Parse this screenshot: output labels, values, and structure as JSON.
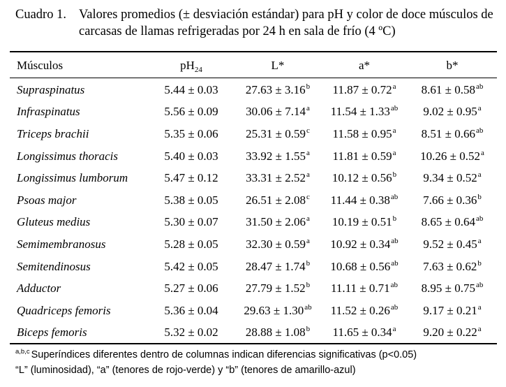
{
  "caption": {
    "label": "Cuadro 1.",
    "line1": "Valores promedios (± desviación estándar) para pH y color de doce músculos de",
    "line2": "carcasas de llamas refrigeradas por 24 h en sala de frío (4 ºC)"
  },
  "table": {
    "headers": {
      "muscle": "Músculos",
      "ph": "pH",
      "ph_sub": "24",
      "l": "L*",
      "a": "a*",
      "b": "b*"
    },
    "rows": [
      {
        "muscle": "Supraspinatus",
        "ph": "5.44 ± 0.03",
        "l": "27.63 ± 3.16",
        "l_sup": "b",
        "a": "11.87 ± 0.72",
        "a_sup": "a",
        "b": "8.61 ± 0.58",
        "b_sup": "ab"
      },
      {
        "muscle": "Infraspinatus",
        "ph": "5.56 ± 0.09",
        "l": "30.06 ± 7.14",
        "l_sup": "a",
        "a": "11.54 ± 1.33",
        "a_sup": "ab",
        "b": "9.02 ± 0.95",
        "b_sup": "a"
      },
      {
        "muscle": "Triceps brachii",
        "ph": "5.35 ± 0.06",
        "l": "25.31 ± 0.59",
        "l_sup": "c",
        "a": "11.58 ± 0.95",
        "a_sup": "a",
        "b": "8.51 ± 0.66",
        "b_sup": "ab"
      },
      {
        "muscle": "Longissimus thoracis",
        "ph": "5.40 ± 0.03",
        "l": "33.92 ± 1.55",
        "l_sup": "a",
        "a": "11.81 ± 0.59",
        "a_sup": "a",
        "b": "10.26 ± 0.52",
        "b_sup": "a"
      },
      {
        "muscle": "Longissimus lumborum",
        "ph": "5.47 ± 0.12",
        "l": "33.31 ± 2.52",
        "l_sup": "a",
        "a": "10.12 ± 0.56",
        "a_sup": "b",
        "b": "9.34 ± 0.52",
        "b_sup": "a"
      },
      {
        "muscle": "Psoas major",
        "ph": "5.38 ± 0.05",
        "l": "26.51 ± 2.08",
        "l_sup": "c",
        "a": "11.44 ± 0.38",
        "a_sup": "ab",
        "b": "7.66 ± 0.36",
        "b_sup": "b"
      },
      {
        "muscle": "Gluteus medius",
        "ph": "5.30 ± 0.07",
        "l": "31.50 ± 2.06",
        "l_sup": "a",
        "a": "10.19 ± 0.51",
        "a_sup": "b",
        "b": "8.65 ± 0.64",
        "b_sup": "ab"
      },
      {
        "muscle": "Semimembranosus",
        "ph": "5.28 ± 0.05",
        "l": "32.30 ± 0.59",
        "l_sup": "a",
        "a": "10.92 ± 0.34",
        "a_sup": "ab",
        "b": "9.52 ± 0.45",
        "b_sup": "a"
      },
      {
        "muscle": "Semitendinosus",
        "ph": "5.42 ± 0.05",
        "l": "28.47 ± 1.74",
        "l_sup": "b",
        "a": "10.68 ± 0.56",
        "a_sup": "ab",
        "b": "7.63 ± 0.62",
        "b_sup": "b"
      },
      {
        "muscle": "Adductor",
        "ph": "5.27 ± 0.06",
        "l": "27.79 ± 1.52",
        "l_sup": "b",
        "a": "11.11 ± 0.71",
        "a_sup": "ab",
        "b": "8.95 ± 0.75",
        "b_sup": "ab"
      },
      {
        "muscle": "Quadriceps femoris",
        "ph": "5.36 ± 0.04",
        "l": "29.63 ± 1.30",
        "l_sup": "ab",
        "a": "11.52 ± 0.26",
        "a_sup": "ab",
        "b": "9.17 ± 0.21",
        "b_sup": "a"
      },
      {
        "muscle": "Biceps femoris",
        "ph": "5.32 ± 0.02",
        "l": "28.88 ± 1.08",
        "l_sup": "b",
        "a": "11.65 ± 0.34",
        "a_sup": "a",
        "b": "9.20 ± 0.22",
        "b_sup": "a"
      }
    ]
  },
  "footnotes": {
    "marks": "a,b,c",
    "line1": "Superíndices diferentes dentro de columnas indican diferencias significativas (p<0.05)",
    "line2": "“L” (luminosidad), “a” (tenores de rojo-verde) y “b” (tenores de amarillo-azul)"
  }
}
